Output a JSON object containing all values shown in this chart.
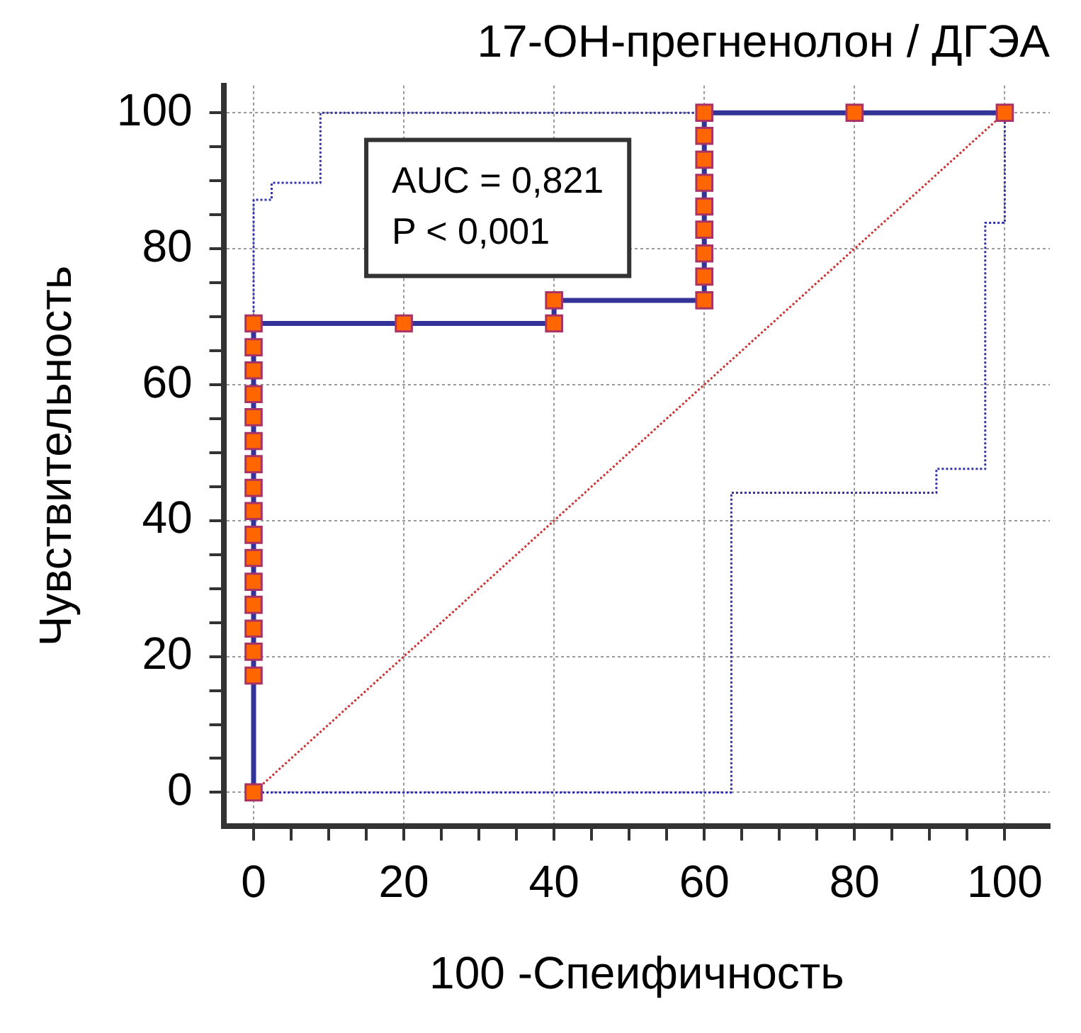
{
  "chart_data": {
    "type": "line",
    "title": "17-ОН-прегненолон / ДГЭА",
    "xlabel": "100 -Спеифичность",
    "ylabel": "Чувствительность",
    "xlim": [
      -4,
      106
    ],
    "ylim": [
      -5,
      104
    ],
    "xticks": [
      0,
      {
        "value": 5,
        "label": null
      },
      {
        "value": 10,
        "label": null
      },
      {
        "value": 15,
        "label": null
      },
      20,
      {
        "value": 25,
        "label": null
      },
      {
        "value": 30,
        "label": null
      },
      {
        "value": 35,
        "label": null
      },
      40,
      {
        "value": 45,
        "label": null
      },
      {
        "value": 50,
        "label": null
      },
      {
        "value": 55,
        "label": null
      },
      60,
      {
        "value": 65,
        "label": null
      },
      {
        "value": 70,
        "label": null
      },
      {
        "value": 75,
        "label": null
      },
      80,
      {
        "value": 85,
        "label": null
      },
      {
        "value": 90,
        "label": null
      },
      {
        "value": 95,
        "label": null
      },
      100
    ],
    "yticks": [
      0,
      {
        "value": 5,
        "label": null
      },
      {
        "value": 10,
        "label": null
      },
      {
        "value": 15,
        "label": null
      },
      20,
      {
        "value": 25,
        "label": null
      },
      {
        "value": 30,
        "label": null
      },
      {
        "value": 35,
        "label": null
      },
      40,
      {
        "value": 45,
        "label": null
      },
      {
        "value": 50,
        "label": null
      },
      {
        "value": 55,
        "label": null
      },
      60,
      {
        "value": 65,
        "label": null
      },
      {
        "value": 70,
        "label": null
      },
      {
        "value": 75,
        "label": null
      },
      80,
      {
        "value": 85,
        "label": null
      },
      {
        "value": 90,
        "label": null
      },
      {
        "value": 95,
        "label": null
      },
      100
    ],
    "grid": true,
    "legend": false,
    "annotations": [
      "AUC = 0,821",
      "P < 0,001"
    ],
    "series": [
      {
        "color": "#3333aa",
        "line_style": "dotted",
        "marker": "none",
        "x": [
          0,
          0,
          2.4,
          2.4,
          8.9,
          8.9,
          100
        ],
        "values": [
          0,
          87.2,
          87.2,
          89.7,
          89.7,
          100,
          100
        ]
      },
      {
        "color": "#3333aa",
        "line_style": "dotted",
        "marker": "none",
        "x": [
          0,
          63.6,
          63.6,
          90.9,
          90.9,
          97.4,
          97.4,
          100,
          100
        ],
        "values": [
          0,
          0,
          44.1,
          44.1,
          47.6,
          47.6,
          83.8,
          83.8,
          100
        ]
      },
      {
        "color": "#cc3333",
        "line_style": "dotted",
        "marker": "none",
        "x": [
          0,
          100
        ],
        "values": [
          0,
          100
        ]
      },
      {
        "color": "#333399",
        "line_style": "solid",
        "marker": "square",
        "colors": [
          "#ff6600",
          "#ff6600",
          "#ff6600",
          "#ff6600",
          "#ff6600",
          "#ff6600",
          "#ff6600",
          "#ff6600",
          "#ff6600",
          "#ff6600",
          "#ff6600",
          "#ff6600",
          "#ff6600",
          "#ff6600",
          "#ff6600",
          "#ff6600",
          "#ff6600",
          "#ff6600",
          "#ff6600",
          "#ff6600",
          "#ff6600",
          "#ff6600",
          "#ff6600",
          "#ff6600",
          "#ff6600",
          "#ff6600",
          "#ff6600",
          "#ff6600",
          "#ff6600",
          "#ff6600",
          "#ff6600"
        ],
        "x": [
          0,
          0,
          0,
          0,
          0,
          0,
          0,
          0,
          0,
          0,
          0,
          0,
          0,
          0,
          0,
          0,
          0,
          20,
          40,
          40,
          60,
          60,
          60,
          60,
          60,
          60,
          60,
          60,
          60,
          80,
          100
        ],
        "values": [
          0,
          17.2,
          20.7,
          24.1,
          27.6,
          31.0,
          34.5,
          37.9,
          41.4,
          44.8,
          48.3,
          51.7,
          55.2,
          58.6,
          62.1,
          65.5,
          69.0,
          69.0,
          69.0,
          72.4,
          72.4,
          75.9,
          79.3,
          82.8,
          86.2,
          89.7,
          93.1,
          96.6,
          100,
          100,
          100
        ]
      }
    ]
  }
}
